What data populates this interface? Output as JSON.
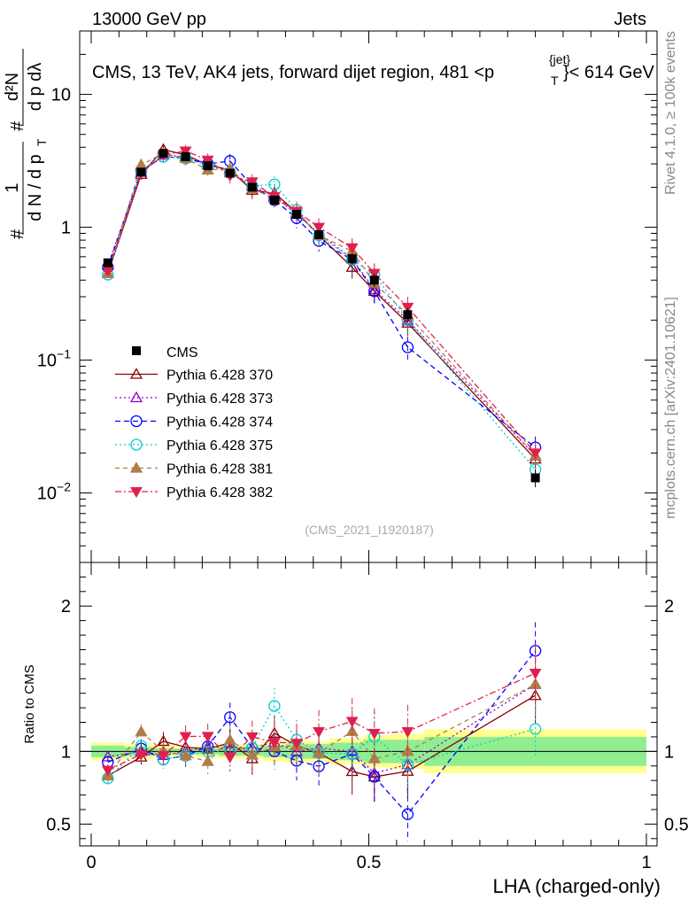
{
  "header": {
    "left": "13000 GeV pp",
    "right": "Jets",
    "side_rivet": "Rivet 4.1.0, ≥ 100k events",
    "side_mcplots": "mcplots.cern.ch [arXiv:2401.10621]"
  },
  "chart_data": {
    "type": "line",
    "title": "CMS, 13 TeV, AK4 jets, forward dijet region, 481 < p_T^{jet} < 614 GeV",
    "title_parts": {
      "pre": "CMS, 13 TeV, AK4 jets, forward dijet region, 481 <p",
      "sup": "{jet}",
      "sub": "T",
      "post": "}< 614 GeV"
    },
    "xlabel": "LHA (charged-only)",
    "ylabel": "# 1/(dN/dp_T) # d²N/(dp_T dλ)",
    "ylabel_parts": {
      "hash": "#",
      "num1": "1",
      "den1": "d N / d p",
      "sub": "T",
      "num2": "d²N",
      "den2": "d p  dλ"
    },
    "ratio_ylabel": "Ratio to CMS",
    "watermark": "(CMS_2021_I1920187)",
    "xlim": [
      0,
      1
    ],
    "ylim": [
      0.003,
      30
    ],
    "yscale": "log",
    "ratio_ylim": [
      0.35,
      2.3
    ],
    "x_ticks": [
      {
        "v": 0,
        "label": "0"
      },
      {
        "v": 0.5,
        "label": "0.5"
      },
      {
        "v": 1,
        "label": "1"
      }
    ],
    "y_ticks": [
      {
        "v": 0.01,
        "base": "10",
        "exp": "−2"
      },
      {
        "v": 0.1,
        "base": "10",
        "exp": "−1"
      },
      {
        "v": 1,
        "base": "1",
        "exp": ""
      },
      {
        "v": 10,
        "base": "10",
        "exp": ""
      }
    ],
    "ratio_ticks": [
      {
        "v": 0.5,
        "label": "0.5"
      },
      {
        "v": 1,
        "label": "1"
      },
      {
        "v": 2,
        "label": "2"
      }
    ],
    "x": [
      0.03,
      0.09,
      0.13,
      0.17,
      0.21,
      0.25,
      0.29,
      0.33,
      0.37,
      0.41,
      0.47,
      0.51,
      0.57,
      0.8
    ],
    "cms": {
      "name": "CMS",
      "values": [
        0.54,
        2.6,
        3.6,
        3.4,
        2.9,
        2.55,
        2.0,
        1.6,
        1.25,
        0.88,
        0.58,
        0.4,
        0.22,
        0.013
      ],
      "band_edges": [
        0,
        0.06,
        0.11,
        0.15,
        0.19,
        0.23,
        0.27,
        0.31,
        0.35,
        0.39,
        0.43,
        0.49,
        0.54,
        0.6,
        1.0
      ],
      "stat_err": [
        0.04,
        0.03,
        0.02,
        0.02,
        0.02,
        0.03,
        0.03,
        0.04,
        0.05,
        0.05,
        0.06,
        0.08,
        0.08,
        0.1
      ],
      "tot_err": [
        0.06,
        0.05,
        0.04,
        0.03,
        0.04,
        0.05,
        0.05,
        0.07,
        0.08,
        0.07,
        0.09,
        0.11,
        0.12,
        0.15
      ]
    },
    "series": [
      {
        "name": "Pythia 6.428 370",
        "color": "#8b0000",
        "marker": "triangle-open",
        "dash": "",
        "values": [
          0.45,
          2.5,
          3.85,
          3.5,
          2.95,
          2.7,
          1.9,
          1.8,
          1.3,
          0.87,
          0.5,
          0.33,
          0.19,
          0.018
        ]
      },
      {
        "name": "Pythia 6.428 373",
        "color": "#9400d3",
        "marker": "triangle-open",
        "dash": "2,3",
        "values": [
          0.52,
          2.6,
          3.5,
          3.4,
          3.0,
          2.6,
          2.05,
          1.7,
          1.25,
          0.9,
          0.58,
          0.34,
          0.2,
          0.019
        ]
      },
      {
        "name": "Pythia 6.428 374",
        "color": "#0000ff",
        "marker": "circle-open",
        "dash": "6,4",
        "values": [
          0.5,
          2.65,
          3.4,
          3.3,
          3.0,
          3.15,
          2.05,
          1.6,
          1.17,
          0.79,
          0.57,
          0.33,
          0.125,
          0.022
        ]
      },
      {
        "name": "Pythia 6.428 375",
        "color": "#00ced1",
        "marker": "circle-open",
        "dash": "2,3",
        "values": [
          0.44,
          2.7,
          3.4,
          3.3,
          2.9,
          2.6,
          2.05,
          2.1,
          1.35,
          0.87,
          0.57,
          0.44,
          0.2,
          0.015
        ]
      },
      {
        "name": "Pythia 6.428 381",
        "color": "#b07c48",
        "marker": "triangle-filled",
        "dash": "5,4",
        "values": [
          0.45,
          2.95,
          3.6,
          3.3,
          2.7,
          2.75,
          1.95,
          1.65,
          1.3,
          0.87,
          0.66,
          0.38,
          0.22,
          0.019
        ]
      },
      {
        "name": "Pythia 6.428 382",
        "color": "#e0204c",
        "marker": "triangledown-filled",
        "dash": "7,3,2,3",
        "values": [
          0.47,
          2.55,
          3.5,
          3.75,
          3.2,
          2.45,
          2.2,
          1.7,
          1.32,
          1.0,
          0.7,
          0.45,
          0.25,
          0.02
        ]
      }
    ]
  }
}
